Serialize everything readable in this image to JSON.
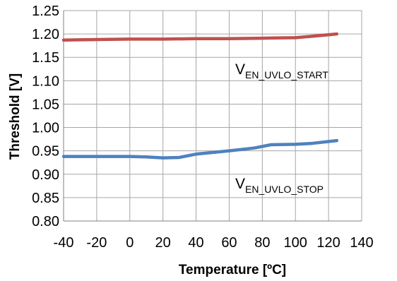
{
  "chart_data": {
    "type": "line",
    "xlabel": "Temperature [ºC]",
    "ylabel": "Threshold [V]",
    "xlim": [
      -40,
      140
    ],
    "ylim": [
      0.8,
      1.25
    ],
    "x_ticks": [
      "-40",
      "-20",
      "0",
      "20",
      "40",
      "60",
      "80",
      "100",
      "120",
      "140"
    ],
    "y_ticks": [
      "0.80",
      "0.85",
      "0.90",
      "0.95",
      "1.00",
      "1.05",
      "1.10",
      "1.15",
      "1.20",
      "1.25"
    ],
    "grid": true,
    "series": [
      {
        "name": "EN_UVLO_START",
        "color": "#C0504D",
        "x": [
          -40,
          -20,
          0,
          20,
          40,
          60,
          80,
          100,
          110,
          125
        ],
        "y": [
          1.187,
          1.188,
          1.189,
          1.189,
          1.19,
          1.19,
          1.191,
          1.192,
          1.195,
          1.2
        ]
      },
      {
        "name": "EN_UVLO_STOP",
        "color": "#4F81BD",
        "x": [
          -40,
          -20,
          0,
          10,
          20,
          30,
          40,
          60,
          75,
          85,
          100,
          110,
          125
        ],
        "y": [
          0.938,
          0.938,
          0.938,
          0.937,
          0.935,
          0.936,
          0.943,
          0.95,
          0.956,
          0.963,
          0.964,
          0.966,
          0.972
        ]
      }
    ],
    "annotations": [
      {
        "main": "V",
        "sub": "EN_UVLO_START"
      },
      {
        "main": "V",
        "sub": "EN_UVLO_STOP"
      }
    ]
  }
}
